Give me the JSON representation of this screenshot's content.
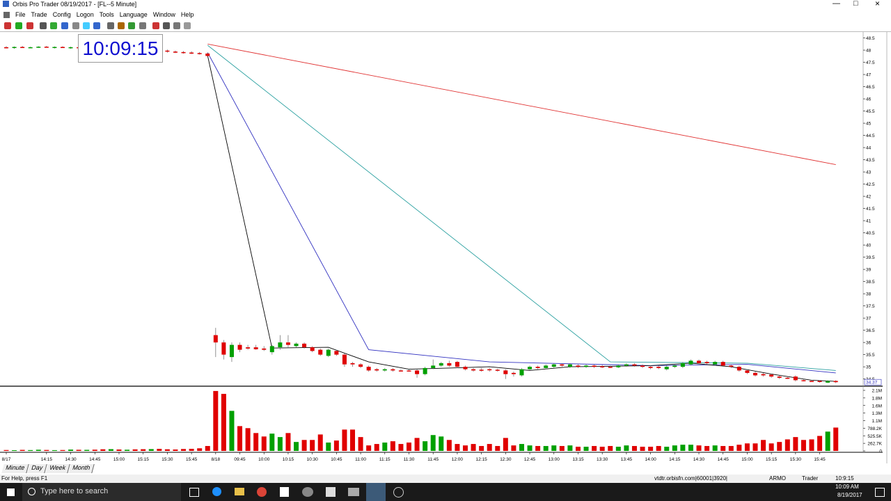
{
  "window": {
    "title": "Orbis Pro Trader 08/19/2017 - [FL--5 Minute]",
    "menu": [
      "File",
      "Trade",
      "Config",
      "Logon",
      "Tools",
      "Language",
      "Window",
      "Help"
    ],
    "clock": "10:09:15"
  },
  "chart_data": {
    "type": "candlestick",
    "up_color": "#00a000",
    "down_color": "#e00000",
    "categories": [
      "8/17",
      null,
      null,
      null,
      null,
      "14:15",
      null,
      null,
      "14:30",
      null,
      null,
      "14:45",
      null,
      null,
      "15:00",
      null,
      null,
      "15:15",
      null,
      null,
      "15:30",
      null,
      null,
      "15:45",
      null,
      null,
      "8/18",
      null,
      null,
      "09:45",
      null,
      null,
      "10:00",
      null,
      null,
      "10:15",
      null,
      null,
      "10:30",
      null,
      null,
      "10:45",
      null,
      null,
      "11:00",
      null,
      null,
      "11:15",
      null,
      null,
      "11:30",
      null,
      null,
      "11:45",
      null,
      null,
      "12:00",
      null,
      null,
      "12:15",
      null,
      null,
      "12:30",
      null,
      null,
      "12:45",
      null,
      null,
      "13:00",
      null,
      null,
      "13:15",
      null,
      null,
      "13:30",
      null,
      null,
      "13:45",
      null,
      null,
      "14:00",
      null,
      null,
      "14:15",
      null,
      null,
      "14:30",
      null,
      null,
      "14:45",
      null,
      null,
      "15:00",
      null,
      null,
      "15:15",
      null,
      null,
      "15:30",
      null,
      null,
      "15:45",
      null,
      null
    ],
    "candles": [
      [
        48.12,
        48.16,
        48.07,
        48.1
      ],
      [
        48.1,
        48.15,
        48.06,
        48.13
      ],
      [
        48.13,
        48.17,
        48.09,
        48.11
      ],
      [
        48.11,
        48.14,
        48.08,
        48.12
      ],
      [
        48.12,
        48.16,
        48.09,
        48.14
      ],
      [
        48.14,
        48.17,
        48.1,
        48.11
      ],
      [
        48.11,
        48.15,
        48.07,
        48.13
      ],
      [
        48.13,
        48.16,
        48.09,
        48.1
      ],
      [
        48.1,
        48.14,
        48.06,
        48.12
      ],
      [
        48.12,
        48.15,
        48.08,
        48.09
      ],
      [
        48.09,
        48.14,
        48.06,
        48.12
      ],
      [
        48.12,
        48.16,
        48.08,
        48.1
      ],
      [
        48.1,
        48.13,
        48.05,
        48.08
      ],
      [
        48.08,
        48.12,
        48.04,
        48.11
      ],
      [
        48.11,
        48.15,
        48.07,
        48.09
      ],
      [
        48.09,
        48.13,
        48.05,
        48.1
      ],
      [
        48.1,
        48.14,
        48.06,
        48.08
      ],
      [
        48.08,
        48.12,
        48.04,
        48.07
      ],
      [
        48.07,
        48.11,
        48.03,
        48.09
      ],
      [
        48.09,
        48.12,
        48.05,
        48.06
      ],
      [
        47.98,
        48.02,
        47.9,
        47.94
      ],
      [
        47.94,
        47.98,
        47.88,
        47.92
      ],
      [
        47.92,
        47.96,
        47.86,
        47.9
      ],
      [
        47.9,
        47.95,
        47.84,
        47.88
      ],
      [
        47.88,
        47.92,
        47.82,
        47.86
      ],
      [
        47.86,
        47.9,
        47.72,
        47.76
      ],
      [
        36.3,
        36.6,
        35.4,
        36.0
      ],
      [
        36.0,
        36.1,
        35.3,
        35.5
      ],
      [
        35.4,
        36.0,
        35.2,
        35.9
      ],
      [
        35.9,
        36.0,
        35.6,
        35.7
      ],
      [
        35.8,
        35.9,
        35.7,
        35.75
      ],
      [
        35.8,
        35.9,
        35.7,
        35.72
      ],
      [
        35.75,
        35.85,
        35.65,
        35.7
      ],
      [
        35.6,
        35.9,
        35.5,
        35.85
      ],
      [
        35.8,
        36.3,
        35.7,
        36.0
      ],
      [
        36.0,
        36.3,
        35.8,
        35.9
      ],
      [
        35.85,
        36.0,
        35.8,
        35.95
      ],
      [
        35.95,
        36.0,
        35.75,
        35.8
      ],
      [
        35.8,
        35.85,
        35.6,
        35.65
      ],
      [
        35.7,
        35.75,
        35.45,
        35.5
      ],
      [
        35.45,
        35.75,
        35.4,
        35.7
      ],
      [
        35.65,
        35.7,
        35.45,
        35.5
      ],
      [
        35.5,
        35.55,
        35.0,
        35.1
      ],
      [
        35.15,
        35.2,
        35.0,
        35.1
      ],
      [
        35.1,
        35.15,
        34.95,
        35.0
      ],
      [
        35.0,
        35.05,
        34.8,
        34.85
      ],
      [
        34.9,
        34.95,
        34.8,
        34.85
      ],
      [
        34.85,
        34.95,
        34.8,
        34.9
      ],
      [
        34.9,
        34.95,
        34.8,
        34.85
      ],
      [
        34.85,
        34.9,
        34.8,
        34.82
      ],
      [
        34.85,
        34.9,
        34.8,
        34.83
      ],
      [
        34.85,
        34.9,
        34.55,
        34.7
      ],
      [
        34.7,
        35.0,
        34.65,
        34.95
      ],
      [
        34.95,
        35.3,
        34.9,
        35.05
      ],
      [
        35.05,
        35.2,
        35.0,
        35.15
      ],
      [
        35.15,
        35.25,
        35.0,
        35.05
      ],
      [
        35.2,
        35.25,
        34.95,
        35.0
      ],
      [
        35.0,
        35.05,
        34.85,
        34.9
      ],
      [
        34.9,
        34.95,
        34.8,
        34.85
      ],
      [
        34.88,
        34.95,
        34.8,
        34.85
      ],
      [
        34.9,
        34.95,
        34.8,
        34.86
      ],
      [
        34.88,
        34.92,
        34.8,
        34.84
      ],
      [
        34.85,
        34.9,
        34.5,
        34.7
      ],
      [
        34.75,
        34.8,
        34.6,
        34.7
      ],
      [
        34.65,
        34.95,
        34.6,
        34.9
      ],
      [
        34.9,
        35.05,
        34.85,
        35.0
      ],
      [
        35.0,
        35.05,
        34.9,
        34.95
      ],
      [
        34.95,
        35.1,
        34.9,
        35.05
      ],
      [
        35.0,
        35.15,
        34.95,
        35.1
      ],
      [
        35.1,
        35.15,
        35.0,
        35.05
      ],
      [
        35.0,
        35.15,
        34.95,
        35.1
      ],
      [
        35.05,
        35.1,
        34.95,
        35.0
      ],
      [
        35.0,
        35.1,
        34.95,
        35.05
      ],
      [
        35.05,
        35.1,
        34.95,
        35.0
      ],
      [
        35.02,
        35.08,
        34.95,
        35.0
      ],
      [
        35.0,
        35.05,
        34.95,
        34.98
      ],
      [
        34.98,
        35.1,
        34.95,
        35.05
      ],
      [
        35.05,
        35.15,
        35.0,
        35.1
      ],
      [
        35.1,
        35.15,
        35.0,
        35.05
      ],
      [
        35.05,
        35.1,
        34.95,
        35.0
      ],
      [
        35.0,
        35.05,
        34.9,
        34.95
      ],
      [
        35.0,
        35.05,
        34.9,
        34.95
      ],
      [
        34.9,
        35.05,
        34.85,
        35.0
      ],
      [
        35.0,
        35.1,
        34.95,
        35.05
      ],
      [
        35.0,
        35.2,
        34.95,
        35.15
      ],
      [
        35.1,
        35.3,
        35.05,
        35.25
      ],
      [
        35.25,
        35.3,
        35.1,
        35.15
      ],
      [
        35.2,
        35.25,
        35.1,
        35.15
      ],
      [
        35.1,
        35.25,
        35.05,
        35.2
      ],
      [
        35.2,
        35.25,
        35.0,
        35.05
      ],
      [
        35.05,
        35.1,
        34.95,
        35.0
      ],
      [
        35.0,
        35.05,
        34.8,
        34.85
      ],
      [
        34.85,
        34.9,
        34.7,
        34.75
      ],
      [
        34.75,
        34.8,
        34.6,
        34.65
      ],
      [
        34.7,
        34.75,
        34.6,
        34.65
      ],
      [
        34.68,
        34.72,
        34.55,
        34.6
      ],
      [
        34.6,
        34.65,
        34.5,
        34.55
      ],
      [
        34.55,
        34.6,
        34.5,
        34.52
      ],
      [
        34.6,
        34.65,
        34.4,
        34.45
      ],
      [
        34.45,
        34.5,
        34.4,
        34.42
      ],
      [
        34.42,
        34.45,
        34.38,
        34.4
      ],
      [
        34.42,
        34.45,
        34.35,
        34.38
      ],
      [
        34.35,
        34.45,
        34.33,
        34.42
      ],
      [
        34.42,
        34.45,
        34.33,
        34.37
      ]
    ],
    "ylim": [
      34.29,
      48.63
    ],
    "yticks": [
      48.5,
      48,
      47.5,
      47,
      46.5,
      46,
      45.5,
      45,
      44.5,
      44,
      43.5,
      43,
      42.5,
      42,
      41.5,
      41,
      40.5,
      40,
      39.5,
      39,
      38.5,
      38,
      37.5,
      37,
      36.5,
      36,
      35.5,
      35,
      34.5
    ],
    "last_price": 34.37,
    "lines": [
      {
        "color": "#e03030",
        "x": [
          25,
          103
        ],
        "values": [
          48.25,
          43.3
        ]
      },
      {
        "color": "#2aa0a0",
        "x": [
          25,
          75,
          92,
          103
        ],
        "values": [
          48.2,
          35.2,
          35.15,
          34.85
        ]
      },
      {
        "color": "#3030c0",
        "x": [
          25,
          45,
          60,
          80,
          92,
          103
        ],
        "values": [
          47.9,
          35.7,
          35.2,
          35.05,
          35.1,
          34.75
        ]
      },
      {
        "color": "#000000",
        "x": [
          25,
          33,
          40,
          45,
          50,
          55,
          60,
          65,
          70,
          75,
          80,
          85,
          90,
          95,
          100,
          103
        ],
        "values": [
          47.77,
          35.77,
          35.8,
          35.2,
          34.9,
          34.95,
          35.0,
          34.85,
          35.0,
          35.02,
          35.05,
          35.15,
          35.0,
          34.7,
          34.45,
          34.4
        ]
      }
    ],
    "volume": {
      "values": [
        30000,
        25000,
        35000,
        28000,
        40000,
        32000,
        26000,
        30000,
        45000,
        38000,
        36000,
        42000,
        55000,
        60000,
        48000,
        40000,
        52000,
        58000,
        62000,
        70000,
        55000,
        48000,
        65000,
        72000,
        90000,
        170000,
        2080000,
        1980000,
        1390000,
        860000,
        790000,
        620000,
        500000,
        600000,
        480000,
        620000,
        310000,
        380000,
        380000,
        570000,
        290000,
        360000,
        740000,
        740000,
        480000,
        190000,
        240000,
        290000,
        335000,
        240000,
        290000,
        450000,
        335000,
        550000,
        500000,
        380000,
        240000,
        190000,
        240000,
        170000,
        240000,
        170000,
        450000,
        190000,
        240000,
        190000,
        170000,
        170000,
        190000,
        170000,
        190000,
        145000,
        145000,
        170000,
        145000,
        170000,
        145000,
        190000,
        170000,
        145000,
        145000,
        170000,
        145000,
        190000,
        215000,
        215000,
        190000,
        170000,
        190000,
        170000,
        170000,
        215000,
        260000,
        260000,
        380000,
        260000,
        310000,
        400000,
        480000,
        380000,
        400000,
        520000,
        670000,
        810000
      ],
      "ylim": [
        0,
        2101840
      ],
      "yticks": [
        {
          "value": 2101840,
          "label": "2.1M"
        },
        {
          "value": 1839110,
          "label": "1.8M"
        },
        {
          "value": 1576380,
          "label": "1.6M"
        },
        {
          "value": 1313650,
          "label": "1.3M"
        },
        {
          "value": 1050920,
          "label": "1.1M"
        },
        {
          "value": 788190,
          "label": "788.2K"
        },
        {
          "value": 525460,
          "label": "525.5K"
        },
        {
          "value": 262730,
          "label": "262.7K"
        },
        0
      ]
    }
  },
  "tabs": [
    "Minute",
    "Day",
    "Week",
    "Month"
  ],
  "status_bar": {
    "help": "For Help, press F1",
    "server": "vtdtr.orbisfn.com|60001|3920|",
    "account": "ARMO",
    "mode": "Trader",
    "time": "10:9:15"
  },
  "taskbar": {
    "search": "Type here to search",
    "time": "10:09 AM",
    "date": "8/19/2017"
  }
}
